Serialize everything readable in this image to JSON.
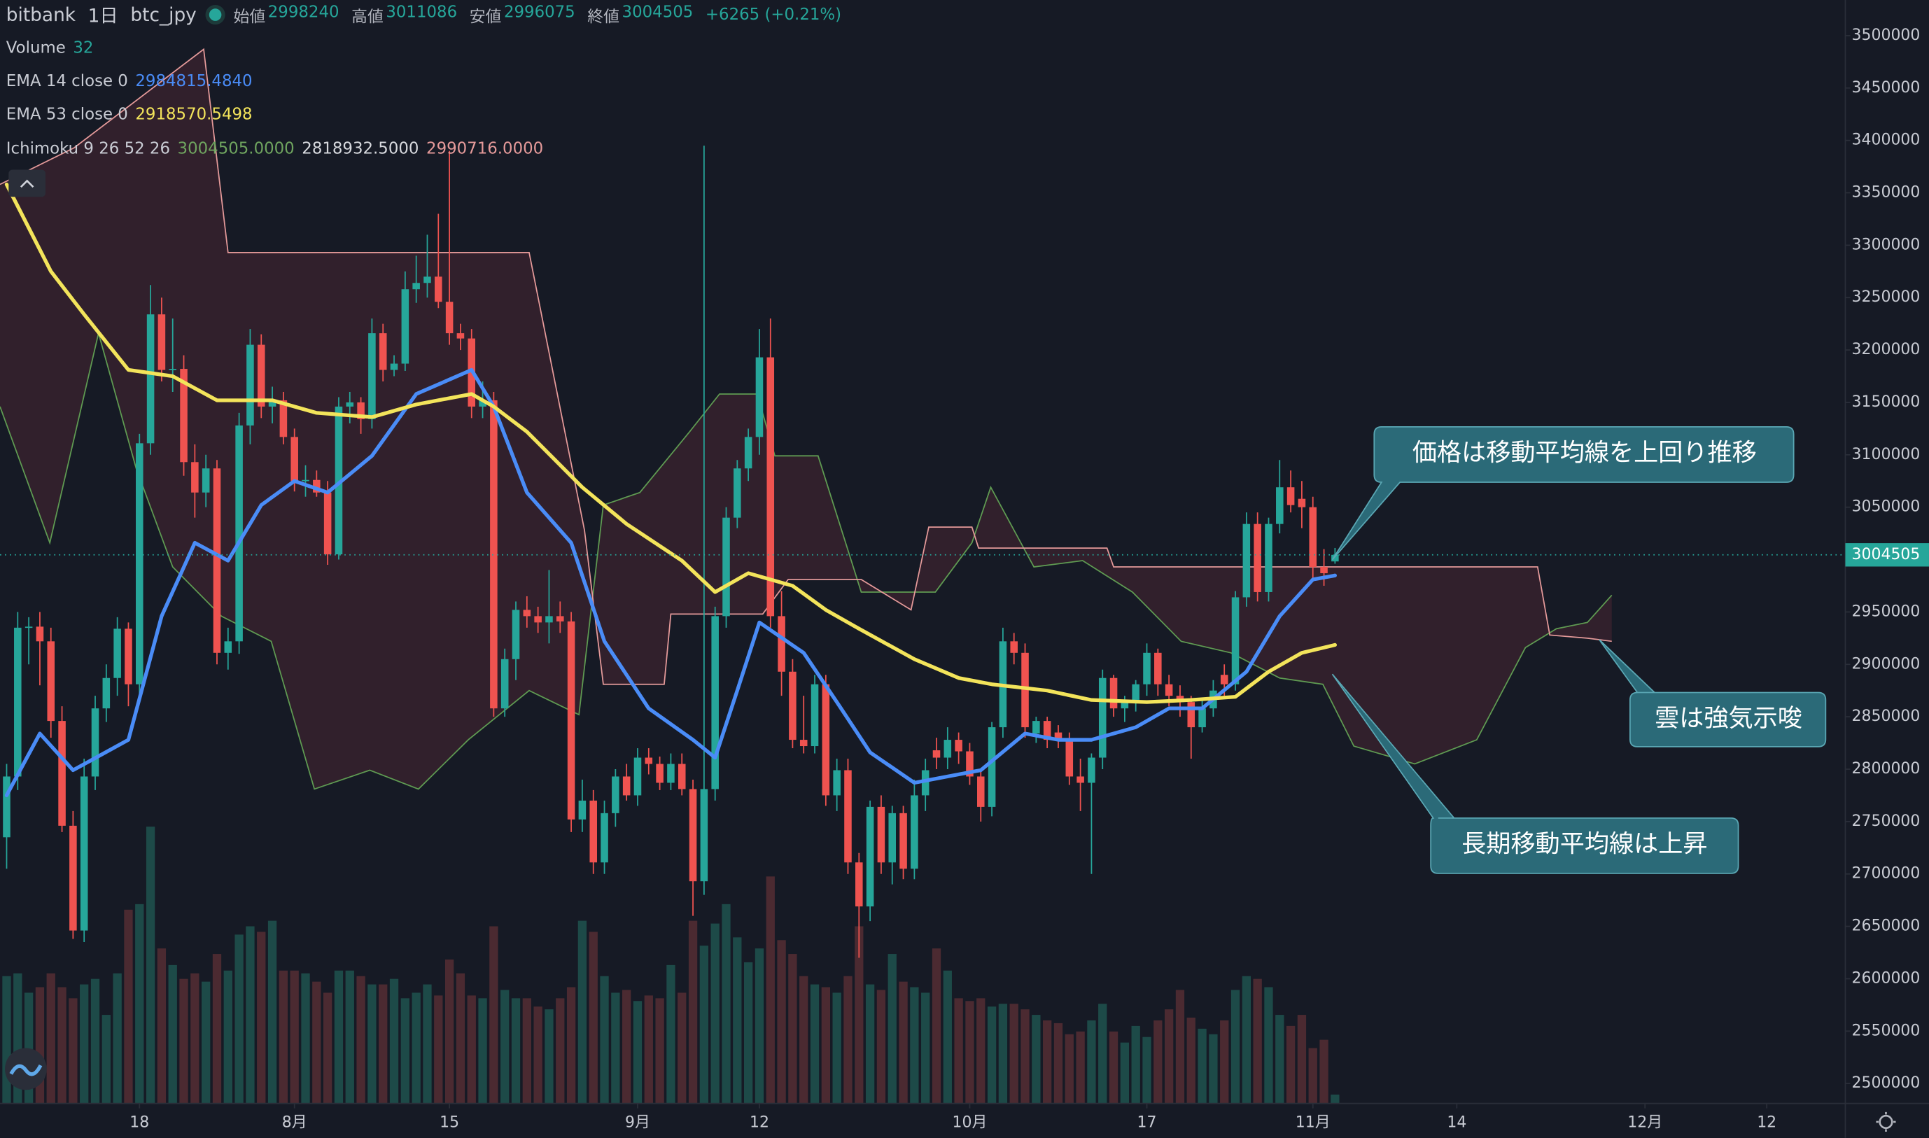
{
  "header": {
    "exchange": "bitbank",
    "interval": "1日",
    "symbol": "btc_jpy",
    "fields": [
      {
        "label": "始値",
        "value": 2998240
      },
      {
        "label": "高値",
        "value": 3011086
      },
      {
        "label": "安値",
        "value": 2996075
      },
      {
        "label": "終値",
        "value": 3004505
      }
    ],
    "change": "+6265 (+0.21%)"
  },
  "chart_data": {
    "type": "candlestick",
    "x": [
      1,
      2,
      3,
      4,
      5,
      6,
      7,
      8,
      9,
      10,
      11,
      12,
      13,
      14,
      15,
      16,
      17,
      18,
      19,
      20,
      21,
      22,
      23,
      24,
      25,
      26,
      27,
      28,
      29,
      30,
      31,
      32,
      33,
      34,
      35,
      36,
      37,
      38,
      39,
      40,
      41,
      42,
      43,
      44,
      45,
      46,
      47,
      48,
      49,
      50,
      51,
      52,
      53,
      54,
      55,
      56,
      57,
      58,
      59,
      60,
      61,
      62,
      63,
      64,
      65,
      66,
      67,
      68,
      69,
      70,
      71,
      72,
      73,
      74,
      75,
      76,
      77,
      78,
      79,
      80,
      81,
      82,
      83,
      84,
      85,
      86,
      87,
      88,
      89,
      90,
      91,
      92,
      93,
      94,
      95,
      96,
      97,
      98,
      99,
      100,
      101,
      102,
      103,
      104,
      105,
      106,
      107,
      108,
      109,
      110,
      111,
      112,
      113,
      114,
      115,
      116,
      117,
      118,
      119,
      120,
      121
    ],
    "open": [
      2735000,
      2793000,
      2935000,
      2936000,
      2922000,
      2846000,
      2746000,
      2646000,
      2793000,
      2858000,
      2887000,
      2934000,
      2881000,
      3111000,
      3234000,
      3181000,
      3182000,
      3093000,
      3064000,
      3087000,
      2911000,
      2922000,
      3128000,
      3205000,
      3146000,
      3152000,
      3117000,
      3075000,
      3076000,
      3064000,
      3005000,
      3146000,
      3150000,
      3134000,
      3216000,
      3181000,
      3187000,
      3258000,
      3264000,
      3270000,
      3246000,
      3216000,
      3211000,
      3146000,
      3152000,
      2858000,
      2905000,
      2952000,
      2946000,
      2940000,
      2946000,
      2941000,
      2752000,
      2770000,
      2711000,
      2758000,
      2793000,
      2775000,
      2811000,
      2805000,
      2787000,
      2805000,
      2781000,
      2693000,
      2781000,
      2946000,
      3040000,
      3087000,
      3117000,
      3193000,
      2946000,
      2893000,
      2828000,
      2822000,
      2881000,
      2775000,
      2799000,
      2711000,
      2669000,
      2764000,
      2711000,
      2758000,
      2705000,
      2775000,
      2818000,
      2811000,
      2828000,
      2817000,
      2793000,
      2764000,
      2840000,
      2922000,
      2911000,
      2834000,
      2846000,
      2835000,
      2828000,
      2793000,
      2787000,
      2811000,
      2887000,
      2858000,
      2864000,
      2881000,
      2911000,
      2881000,
      2870000,
      2864000,
      2840000,
      2858000,
      2890000,
      2881000,
      2964000,
      3034000,
      2969000,
      3034000,
      3069000,
      3058000,
      3050000,
      2993000,
      2998240
    ],
    "high": [
      2805000,
      2950000,
      2945000,
      2950000,
      2935000,
      2860000,
      2760000,
      2810000,
      2870000,
      2900000,
      2945000,
      2940000,
      3120000,
      3262000,
      3250000,
      3230000,
      3195000,
      3110000,
      3100000,
      3095000,
      2935000,
      3140000,
      3220000,
      3215000,
      3165000,
      3160000,
      3125000,
      3090000,
      3085000,
      3075000,
      3155000,
      3160000,
      3155000,
      3230000,
      3225000,
      3195000,
      3275000,
      3290000,
      3310000,
      3330000,
      3390000,
      3225000,
      3220000,
      3170000,
      3160000,
      2915000,
      2960000,
      2965000,
      2955000,
      2990000,
      2960000,
      2950000,
      2790000,
      2780000,
      2770000,
      2800000,
      2805000,
      2820000,
      2820000,
      2812000,
      2815000,
      2815000,
      2790000,
      3395000,
      2955000,
      3050000,
      3095000,
      3125000,
      3220000,
      3230000,
      2970000,
      2905000,
      2870000,
      2890000,
      2890000,
      2810000,
      2810000,
      2720000,
      2770000,
      2775000,
      2765000,
      2765000,
      2790000,
      2810000,
      2830000,
      2840000,
      2835000,
      2825000,
      2800000,
      2845000,
      2935000,
      2930000,
      2920000,
      2850000,
      2850000,
      2842000,
      2835000,
      2810000,
      2815000,
      2895000,
      2890000,
      2870000,
      2885000,
      2920000,
      2915000,
      2890000,
      2880000,
      2870000,
      2865000,
      2885000,
      2900000,
      2970000,
      3045000,
      3045000,
      3040000,
      3095000,
      3085000,
      3075000,
      3060000,
      3010000,
      3011086
    ],
    "low": [
      2705000,
      2780000,
      2900000,
      2880000,
      2830000,
      2740000,
      2638000,
      2635000,
      2780000,
      2845000,
      2870000,
      2860000,
      2870000,
      3100000,
      3170000,
      3160000,
      3080000,
      3040000,
      3050000,
      2900000,
      2895000,
      2910000,
      3110000,
      3135000,
      3130000,
      3110000,
      3065000,
      3060000,
      3060000,
      2995000,
      3000000,
      3130000,
      3120000,
      3125000,
      3170000,
      3175000,
      3180000,
      3245000,
      3250000,
      3240000,
      3205000,
      3200000,
      3135000,
      3135000,
      2850000,
      2850000,
      2885000,
      2935000,
      2930000,
      2920000,
      2930000,
      2740000,
      2740000,
      2700000,
      2700000,
      2745000,
      2770000,
      2765000,
      2795000,
      2780000,
      2780000,
      2775000,
      2660000,
      2680000,
      2770000,
      2935000,
      3030000,
      3075000,
      3100000,
      2935000,
      2870000,
      2820000,
      2815000,
      2815000,
      2765000,
      2760000,
      2700000,
      2620000,
      2655000,
      2700000,
      2690000,
      2695000,
      2695000,
      2760000,
      2800000,
      2800000,
      2805000,
      2785000,
      2750000,
      2755000,
      2830000,
      2900000,
      2830000,
      2825000,
      2820000,
      2820000,
      2785000,
      2760000,
      2700000,
      2800000,
      2850000,
      2845000,
      2855000,
      2870000,
      2870000,
      2860000,
      2850000,
      2810000,
      2835000,
      2850000,
      2870000,
      2875000,
      2955000,
      2960000,
      2960000,
      3025000,
      3045000,
      3030000,
      2980000,
      2975000,
      2996075
    ],
    "close": [
      2793000,
      2935000,
      2936000,
      2922000,
      2846000,
      2746000,
      2646000,
      2793000,
      2858000,
      2887000,
      2934000,
      2881000,
      3111000,
      3234000,
      3181000,
      3182000,
      3093000,
      3064000,
      3087000,
      2911000,
      2922000,
      3128000,
      3205000,
      3146000,
      3152000,
      3117000,
      3075000,
      3076000,
      3064000,
      3005000,
      3146000,
      3150000,
      3134000,
      3216000,
      3181000,
      3187000,
      3258000,
      3264000,
      3270000,
      3246000,
      3216000,
      3211000,
      3146000,
      3152000,
      2858000,
      2905000,
      2952000,
      2946000,
      2940000,
      2946000,
      2941000,
      2752000,
      2770000,
      2711000,
      2758000,
      2793000,
      2775000,
      2811000,
      2805000,
      2787000,
      2805000,
      2781000,
      2693000,
      2781000,
      2946000,
      3040000,
      3087000,
      3117000,
      3193000,
      2946000,
      2893000,
      2828000,
      2822000,
      2881000,
      2775000,
      2799000,
      2711000,
      2669000,
      2764000,
      2711000,
      2758000,
      2705000,
      2775000,
      2799000,
      2811000,
      2828000,
      2817000,
      2793000,
      2764000,
      2840000,
      2922000,
      2911000,
      2840000,
      2846000,
      2828000,
      2828000,
      2793000,
      2787000,
      2811000,
      2887000,
      2858000,
      2864000,
      2881000,
      2911000,
      2881000,
      2870000,
      2864000,
      2840000,
      2858000,
      2875000,
      2881000,
      2964000,
      3034000,
      2969000,
      3034000,
      3069000,
      3052000,
      3050000,
      2993000,
      2987000,
      3004505
    ],
    "up_color": "#26a69a",
    "down_color": "#ef5350",
    "volume": {
      "name": "Volume",
      "up_color": "#1d4a48",
      "down_color": "#4b2a31",
      "lim": [
        0,
        1000
      ],
      "values": [
        460,
        470,
        400,
        420,
        470,
        420,
        380,
        430,
        450,
        320,
        470,
        700,
        720,
        1000,
        560,
        500,
        450,
        470,
        440,
        540,
        480,
        610,
        640,
        620,
        660,
        480,
        480,
        470,
        440,
        400,
        480,
        480,
        460,
        430,
        430,
        450,
        380,
        400,
        430,
        390,
        520,
        470,
        390,
        380,
        640,
        410,
        380,
        380,
        350,
        340,
        380,
        420,
        660,
        620,
        460,
        400,
        410,
        370,
        390,
        380,
        500,
        400,
        660,
        570,
        650,
        720,
        600,
        510,
        560,
        820,
        590,
        540,
        460,
        430,
        420,
        400,
        460,
        640,
        430,
        410,
        540,
        440,
        420,
        400,
        560,
        480,
        380,
        370,
        380,
        350,
        360,
        360,
        340,
        320,
        300,
        290,
        250,
        260,
        300,
        360,
        260,
        220,
        280,
        240,
        300,
        340,
        410,
        310,
        270,
        250,
        300,
        410,
        460,
        450,
        420,
        320,
        280,
        320,
        200,
        230,
        32
      ]
    },
    "series": [
      {
        "name": "EMA 14 close 0",
        "color": "#4a8cf7",
        "legend_value": "2984815.4840",
        "x": [
          1,
          4,
          7,
          12,
          15,
          18,
          21,
          24,
          27,
          30,
          34,
          38,
          43,
          45,
          48,
          52,
          55,
          59,
          63,
          65,
          67,
          69,
          73,
          76,
          79,
          83,
          86,
          89,
          93,
          96,
          99,
          103,
          106,
          109,
          113,
          116,
          119,
          121
        ],
        "values": [
          2775000,
          2834000,
          2799000,
          2828000,
          2946000,
          3016000,
          2999000,
          3052000,
          3075000,
          3064000,
          3099000,
          3158000,
          3181000,
          3146000,
          3064000,
          3016000,
          2922000,
          2858000,
          2828000,
          2811000,
          2875000,
          2940000,
          2911000,
          2864000,
          2816000,
          2787000,
          2793000,
          2799000,
          2834000,
          2828000,
          2828000,
          2840000,
          2858000,
          2858000,
          2893000,
          2946000,
          2981000,
          2984815.484
        ]
      },
      {
        "name": "EMA 53 close 0",
        "color": "#f3e45b",
        "legend_value": "2918570.5498",
        "x": [
          1,
          5,
          8,
          12,
          16,
          20,
          25,
          29,
          34,
          38,
          43,
          45,
          48,
          53,
          57,
          62,
          65,
          68,
          72,
          75,
          78,
          83,
          87,
          90,
          95,
          99,
          104,
          108,
          112,
          115,
          118,
          121
        ],
        "values": [
          3358000,
          3275000,
          3234000,
          3181000,
          3175000,
          3152000,
          3152000,
          3140000,
          3136000,
          3148000,
          3158000,
          3146000,
          3122000,
          3069000,
          3034000,
          2999000,
          2969000,
          2987000,
          2975000,
          2952000,
          2934000,
          2905000,
          2887000,
          2881000,
          2875000,
          2866000,
          2864000,
          2866000,
          2869000,
          2893000,
          2911000,
          2918570.5498
        ]
      }
    ],
    "ichimoku": {
      "name": "Ichimoku 9 26 52 26",
      "legend_values": [
        "3004505.0000",
        "2818932.5000",
        "2990716.0000"
      ],
      "cloud_color": "#7a3442",
      "series": [
        {
          "color": "#5f9b52",
          "x": [
            0.4,
            4.9,
            9.3,
            12.7,
            16,
            20.4,
            24.9,
            28.8,
            33.8,
            38.2,
            42.7,
            48.2,
            52.7,
            54.9,
            58.2,
            62.7,
            65.4,
            68.8,
            70.4,
            74.3,
            78.2,
            84.9,
            88.2,
            89.9,
            93.8,
            98.2,
            102.7,
            107.1,
            111.6,
            116,
            119.9,
            122.7,
            128.2,
            133.8,
            138.2,
            141,
            143.8,
            146
          ],
          "values": [
            3146000,
            3016000,
            3216000,
            3087000,
            2993000,
            2946000,
            2922000,
            2781000,
            2799000,
            2781000,
            2828000,
            2875000,
            2852000,
            3052000,
            3064000,
            3122000,
            3158000,
            3158000,
            3099000,
            3099000,
            2969000,
            2969000,
            3016000,
            3069000,
            2993000,
            2999000,
            2969000,
            2922000,
            2911000,
            2887000,
            2881000,
            2822000,
            2805000,
            2828000,
            2916000,
            2934000,
            2940000,
            2966000
          ]
        },
        {
          "color": "#e59a9a",
          "x": [
            0.4,
            7.1,
            18.8,
            21,
            48.2,
            53.2,
            54.9,
            60.4,
            61,
            69.3,
            71.6,
            78.2,
            82.7,
            84.3,
            88.2,
            88.8,
            100.4,
            101,
            139.3,
            140.4,
            143.8,
            146
          ],
          "values": [
            3358000,
            3393000,
            3487000,
            3293000,
            3293000,
            3028000,
            2881000,
            2881000,
            2948000,
            2948000,
            2981000,
            2981000,
            2952000,
            3031000,
            3031000,
            3011000,
            3011000,
            2993000,
            2993000,
            2928000,
            2925000,
            2922000
          ]
        }
      ]
    },
    "current_price": 3004505,
    "xlim": [
      0.4,
      167.1
    ],
    "ylim": [
      2481000,
      3534000
    ],
    "xticks": [
      {
        "value": 13,
        "label": "18"
      },
      {
        "value": 27,
        "label": "8月"
      },
      {
        "value": 41,
        "label": "15"
      },
      {
        "value": 58,
        "label": "9月"
      },
      {
        "value": 69,
        "label": "12"
      },
      {
        "value": 88,
        "label": "10月"
      },
      {
        "value": 104,
        "label": "17"
      },
      {
        "value": 119,
        "label": "11月"
      },
      {
        "value": 132,
        "label": "14"
      },
      {
        "value": 149,
        "label": "12月"
      },
      {
        "value": 160,
        "label": "12"
      }
    ],
    "yticks": [
      2500000,
      2550000,
      2600000,
      2650000,
      2700000,
      2750000,
      2800000,
      2850000,
      2900000,
      2950000,
      3000000,
      3050000,
      3100000,
      3150000,
      3200000,
      3250000,
      3300000,
      3350000,
      3400000,
      3450000,
      3500000
    ],
    "annotations": [
      "価格は移動平均線を上回り推移",
      "雲は強気示唆",
      "長期移動平均線は上昇"
    ]
  }
}
